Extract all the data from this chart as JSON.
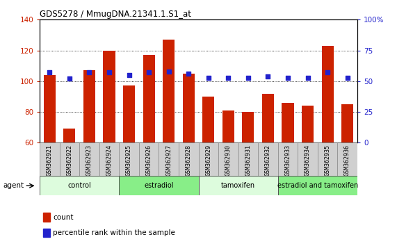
{
  "title": "GDS5278 / MmugDNA.21341.1.S1_at",
  "samples": [
    "GSM362921",
    "GSM362922",
    "GSM362923",
    "GSM362924",
    "GSM362925",
    "GSM362926",
    "GSM362927",
    "GSM362928",
    "GSM362929",
    "GSM362930",
    "GSM362931",
    "GSM362932",
    "GSM362933",
    "GSM362934",
    "GSM362935",
    "GSM362936"
  ],
  "counts": [
    104,
    69,
    107,
    120,
    97,
    117,
    127,
    105,
    90,
    81,
    80,
    92,
    86,
    84,
    123,
    85
  ],
  "percentile_ranks": [
    57,
    52,
    57,
    57,
    55,
    57,
    58,
    56,
    53,
    53,
    53,
    54,
    53,
    53,
    57,
    53
  ],
  "bar_color": "#cc2200",
  "dot_color": "#2222cc",
  "ylim_left": [
    60,
    140
  ],
  "ylim_right": [
    0,
    100
  ],
  "yticks_left": [
    60,
    80,
    100,
    120,
    140
  ],
  "yticks_right": [
    0,
    25,
    50,
    75,
    100
  ],
  "groups": [
    {
      "label": "control",
      "start": 0,
      "end": 4,
      "color": "#ddfcdd"
    },
    {
      "label": "estradiol",
      "start": 4,
      "end": 8,
      "color": "#88ee88"
    },
    {
      "label": "tamoxifen",
      "start": 8,
      "end": 12,
      "color": "#ddfcdd"
    },
    {
      "label": "estradiol and tamoxifen",
      "start": 12,
      "end": 16,
      "color": "#88ee88"
    }
  ],
  "agent_label": "agent",
  "legend_count_label": "count",
  "legend_pct_label": "percentile rank within the sample",
  "background_color": "#ffffff",
  "sample_box_color": "#d0d0d0",
  "sample_box_edge": "#888888"
}
